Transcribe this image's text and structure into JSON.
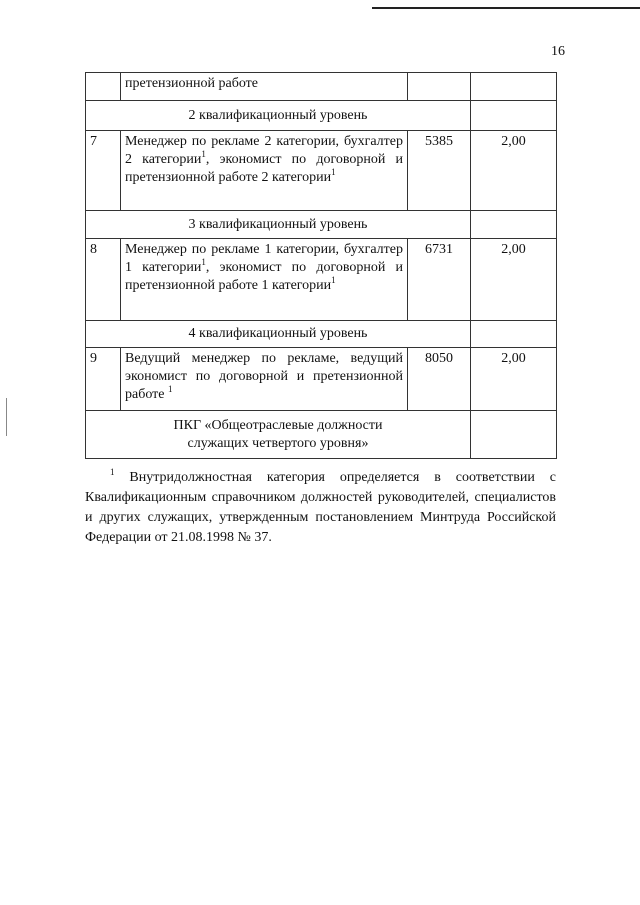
{
  "page_number": "16",
  "table": {
    "rows": [
      {
        "type": "item",
        "num": "",
        "title": "претензионной работе",
        "salary": "",
        "coef": ""
      },
      {
        "type": "level",
        "title": "2 квалификационный уровень"
      },
      {
        "type": "item",
        "num": "7",
        "title": "Менеджер по рекламе 2 категории, бухгалтер 2 категории",
        "title_mid": ", экономист по договорной и претензионной работе 2 категории",
        "salary": "5385",
        "coef": "2,00"
      },
      {
        "type": "level",
        "title": "3 квалификационный уровень"
      },
      {
        "type": "item",
        "num": "8",
        "title": "Менеджер по рекламе 1 категории, бухгалтер 1 категории",
        "title_mid": ", экономист по договорной и претензионной работе 1 категории",
        "salary": "6731",
        "coef": "2,00"
      },
      {
        "type": "level",
        "title": "4 квалификационный уровень"
      },
      {
        "type": "item",
        "num": "9",
        "title": "Ведущий менеджер по рекламе, ведущий экономист по договорной и претензионной работе",
        "salary": "8050",
        "coef": "2,00"
      },
      {
        "type": "group",
        "title": "ПКГ «Общеотраслевые должности служащих четвертого уровня»"
      }
    ],
    "footnote_mark": "1"
  },
  "footnote": {
    "mark": "1",
    "text": "Внутридолжностная категория определяется в соответствии с Квалификационным справочником должностей руководителей, специалистов и других служащих, утвержденным постановлением Минтруда Российской Федерации от 21.08.1998 № 37."
  }
}
